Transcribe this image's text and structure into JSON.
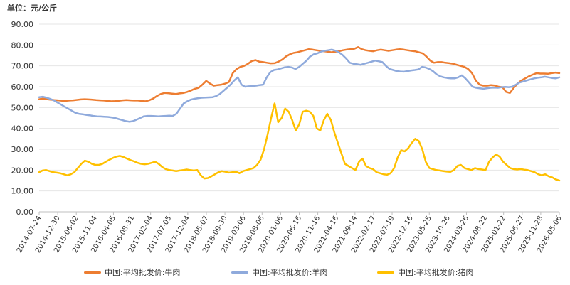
{
  "chart_data": {
    "type": "line",
    "unit_label": "单位：元/公斤",
    "ylim": [
      0,
      90
    ],
    "y_ticks": [
      "0.00",
      "10.00",
      "20.00",
      "30.00",
      "40.00",
      "50.00",
      "60.00",
      "70.00",
      "80.00",
      "90.00"
    ],
    "x_ticks": [
      "2014-07-24",
      "2014-12-30",
      "2015-06-02",
      "2015-11-04",
      "2016-04-05",
      "2016-08-31",
      "2017-02-04",
      "2017-07-05",
      "2017-12-04",
      "2018-05-07",
      "2018-09-30",
      "2019-03-06",
      "2019-08-06",
      "2020-01-06",
      "2020-06-16",
      "2020-11-16",
      "2021-04-16",
      "2021-09-14",
      "2022-02-17",
      "2022-07-19",
      "2022-12-16",
      "2023-05-25",
      "2023-10-26",
      "2024-03-26",
      "2024-08-22",
      "2025-01-22",
      "2025-06-27",
      "2025-11-28",
      "2026-05-06"
    ],
    "series": [
      {
        "name": "中国:平均批发价:牛肉",
        "color": "#ED7D31",
        "values": [
          54.0,
          54.3,
          54.0,
          53.8,
          53.6,
          53.5,
          53.3,
          53.2,
          53.4,
          53.5,
          53.7,
          53.9,
          54.0,
          53.9,
          53.8,
          53.6,
          53.5,
          53.4,
          53.2,
          53.0,
          53.1,
          53.3,
          53.5,
          53.6,
          53.5,
          53.4,
          53.4,
          53.2,
          53.0,
          53.5,
          54.3,
          55.5,
          56.5,
          57.0,
          56.9,
          56.7,
          56.5,
          56.8,
          57.0,
          57.5,
          58.2,
          59.0,
          59.5,
          61.0,
          62.8,
          61.5,
          60.5,
          60.8,
          61.0,
          61.5,
          62.3,
          66.5,
          68.5,
          69.5,
          70.0,
          71.0,
          72.3,
          72.8,
          72.0,
          71.8,
          71.5,
          71.2,
          71.3,
          72.0,
          73.0,
          74.5,
          75.5,
          76.2,
          76.5,
          77.0,
          77.5,
          78.0,
          77.8,
          77.5,
          77.2,
          77.0,
          76.8,
          76.5,
          76.8,
          77.0,
          77.5,
          77.8,
          78.0,
          78.2,
          79.0,
          78.0,
          77.5,
          77.2,
          77.0,
          77.5,
          77.8,
          77.5,
          77.2,
          77.5,
          77.8,
          78.0,
          77.8,
          77.5,
          77.2,
          77.0,
          76.5,
          76.0,
          74.5,
          72.5,
          71.5,
          71.8,
          71.8,
          71.5,
          71.3,
          71.0,
          70.5,
          70.0,
          69.5,
          68.5,
          66.5,
          63.0,
          61.0,
          60.5,
          60.5,
          60.8,
          60.6,
          60.0,
          59.8,
          57.5,
          57.0,
          59.5,
          61.5,
          63.0,
          64.0,
          65.0,
          65.8,
          66.5,
          66.3,
          66.3,
          66.2,
          66.5,
          66.8,
          66.5
        ]
      },
      {
        "name": "中国:平均批发价:羊肉",
        "color": "#8FAADC",
        "values": [
          55.0,
          55.2,
          54.8,
          54.2,
          53.5,
          52.5,
          51.5,
          50.5,
          49.5,
          48.5,
          47.5,
          47.0,
          46.8,
          46.5,
          46.3,
          46.0,
          45.8,
          45.7,
          45.6,
          45.5,
          45.3,
          45.0,
          44.5,
          44.0,
          43.5,
          43.2,
          43.5,
          44.2,
          45.0,
          45.8,
          46.0,
          46.0,
          45.9,
          45.8,
          45.9,
          46.0,
          46.1,
          46.0,
          47.0,
          49.5,
          52.0,
          53.0,
          53.8,
          54.2,
          54.5,
          54.7,
          54.8,
          54.9,
          55.0,
          55.5,
          56.5,
          58.0,
          59.5,
          61.0,
          63.0,
          64.5,
          61.0,
          60.0,
          60.2,
          60.3,
          60.5,
          60.8,
          61.0,
          64.5,
          67.0,
          68.0,
          68.3,
          68.8,
          69.3,
          69.5,
          69.2,
          68.5,
          69.5,
          71.0,
          72.5,
          74.5,
          75.5,
          76.0,
          76.8,
          77.2,
          77.5,
          77.8,
          77.3,
          76.5,
          75.2,
          73.5,
          71.5,
          71.0,
          70.8,
          70.5,
          71.0,
          71.5,
          72.0,
          72.5,
          72.2,
          71.8,
          70.0,
          68.5,
          68.0,
          67.5,
          67.3,
          67.2,
          67.5,
          67.8,
          68.0,
          68.3,
          69.5,
          69.2,
          68.5,
          67.5,
          66.0,
          65.0,
          64.5,
          64.2,
          64.0,
          64.0,
          64.5,
          65.5,
          64.0,
          62.0,
          60.0,
          59.5,
          59.2,
          59.0,
          59.3,
          59.5,
          59.6,
          59.5,
          59.8,
          59.9,
          59.8,
          60.0,
          61.0,
          62.0,
          62.5,
          63.0,
          63.5,
          64.0,
          64.3,
          64.5,
          64.8,
          64.5,
          64.2,
          64.0,
          64.5
        ]
      },
      {
        "name": "中国:平均批发价:猪肉",
        "color": "#FFC000",
        "values": [
          19.0,
          19.8,
          20.0,
          19.5,
          19.0,
          18.8,
          18.5,
          18.0,
          17.5,
          18.0,
          19.0,
          21.0,
          23.0,
          24.5,
          24.0,
          23.0,
          22.5,
          22.5,
          23.0,
          24.0,
          25.0,
          25.8,
          26.5,
          26.8,
          26.3,
          25.5,
          24.8,
          24.2,
          23.5,
          23.0,
          22.8,
          23.0,
          23.5,
          24.0,
          23.0,
          21.5,
          20.5,
          20.0,
          19.8,
          19.5,
          19.8,
          20.0,
          20.3,
          20.0,
          19.8,
          20.0,
          17.5,
          16.0,
          16.2,
          17.0,
          18.0,
          19.0,
          19.5,
          19.2,
          18.8,
          19.0,
          19.2,
          18.5,
          19.5,
          20.0,
          20.5,
          21.0,
          22.5,
          25.0,
          30.0,
          37.0,
          45.0,
          52.0,
          43.0,
          45.0,
          49.5,
          48.0,
          44.0,
          39.0,
          42.0,
          48.0,
          48.5,
          48.0,
          46.0,
          40.0,
          39.0,
          44.0,
          47.0,
          44.0,
          38.0,
          33.0,
          28.0,
          23.0,
          22.0,
          21.0,
          20.0,
          24.0,
          25.5,
          22.0,
          21.0,
          20.5,
          19.0,
          18.5,
          18.0,
          17.8,
          18.5,
          21.0,
          26.0,
          29.5,
          29.0,
          30.5,
          33.0,
          35.0,
          34.0,
          30.0,
          24.0,
          21.0,
          20.5,
          20.0,
          19.8,
          19.5,
          19.3,
          19.2,
          20.0,
          22.0,
          22.5,
          21.0,
          20.5,
          20.0,
          21.0,
          20.5,
          20.3,
          20.0,
          24.0,
          26.0,
          27.5,
          26.5,
          24.0,
          22.5,
          21.0,
          20.5,
          20.3,
          20.5,
          20.2,
          20.0,
          19.5,
          19.0,
          18.0,
          17.5,
          18.0,
          17.0,
          16.5,
          15.5,
          15.0
        ]
      }
    ]
  }
}
